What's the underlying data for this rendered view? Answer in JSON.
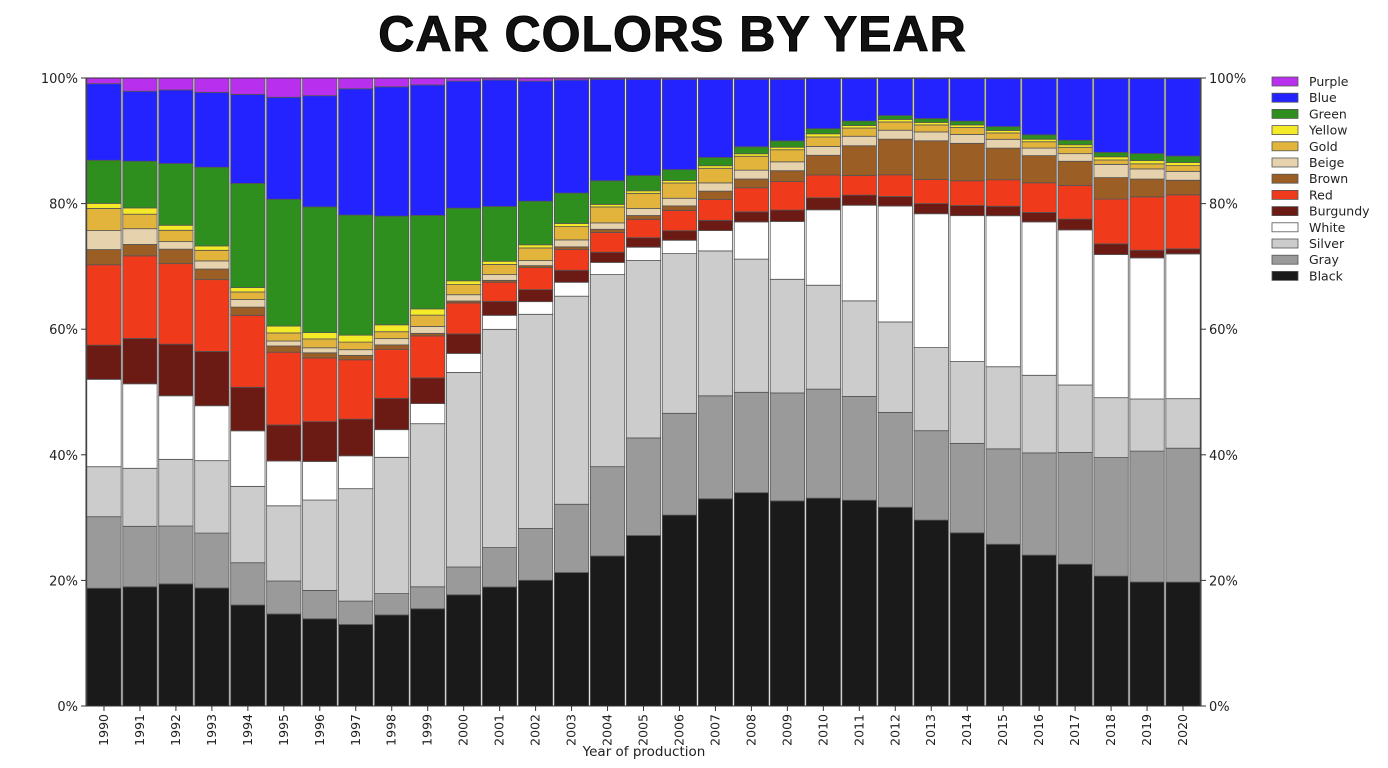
{
  "chart_data": {
    "type": "bar",
    "stacked": true,
    "normalized": true,
    "title": "CAR COLORS BY YEAR",
    "xlabel": "Year of production",
    "ylabel": "",
    "ylim": [
      0,
      100
    ],
    "y_ticks": [
      "0%",
      "20%",
      "40%",
      "60%",
      "80%",
      "100%"
    ],
    "y_tick_values": [
      0,
      20,
      40,
      60,
      80,
      100
    ],
    "grid": false,
    "legend_position": "right",
    "categories": [
      "1990",
      "1991",
      "1992",
      "1993",
      "1994",
      "1995",
      "1996",
      "1997",
      "1998",
      "1999",
      "2000",
      "2001",
      "2002",
      "2003",
      "2004",
      "2005",
      "2006",
      "2007",
      "2008",
      "2009",
      "2010",
      "2011",
      "2012",
      "2013",
      "2014",
      "2015",
      "2016",
      "2017",
      "2018",
      "2019",
      "2020"
    ],
    "series": [
      {
        "name": "Black",
        "color": "#1a1a1a",
        "values": [
          18.6,
          18.9,
          19.4,
          18.9,
          16.0,
          14.8,
          13.8,
          12.9,
          14.5,
          15.5,
          17.6,
          18.7,
          19.9,
          21.1,
          23.5,
          26.9,
          30.0,
          32.6,
          33.8,
          32.3,
          32.8,
          32.5,
          31.2,
          29.3,
          27.3,
          25.6,
          23.9,
          22.3,
          20.6,
          19.5,
          19.5
        ]
      },
      {
        "name": "Gray",
        "color": "#9a9a9a",
        "values": [
          11.3,
          9.6,
          9.2,
          8.8,
          6.7,
          5.3,
          4.5,
          3.7,
          3.4,
          3.5,
          4.4,
          6.2,
          8.2,
          10.8,
          14.0,
          15.4,
          16.0,
          16.2,
          15.9,
          17.0,
          17.2,
          16.4,
          14.9,
          14.1,
          14.1,
          15.1,
          16.2,
          17.6,
          18.8,
          20.6,
          21.1
        ]
      },
      {
        "name": "Silver",
        "color": "#cccccc",
        "values": [
          7.9,
          9.2,
          10.6,
          11.6,
          12.1,
          12.1,
          14.3,
          17.8,
          21.7,
          26.0,
          30.8,
          34.3,
          33.9,
          32.9,
          30.1,
          28.0,
          25.1,
          22.8,
          21.1,
          17.9,
          16.4,
          15.1,
          14.2,
          13.1,
          12.9,
          13.0,
          12.3,
          10.6,
          9.5,
          8.2,
          7.8
        ]
      },
      {
        "name": "White",
        "color": "#ffffff",
        "values": [
          13.8,
          13.4,
          10.1,
          8.8,
          8.8,
          7.2,
          6.1,
          5.2,
          4.4,
          3.2,
          3.0,
          2.2,
          2.0,
          2.2,
          1.9,
          2.1,
          2.1,
          3.2,
          5.9,
          9.1,
          11.9,
          15.1,
          18.2,
          21.1,
          23.0,
          23.9,
          24.3,
          24.4,
          22.7,
          22.2,
          22.8
        ]
      },
      {
        "name": "Burgundy",
        "color": "#6b1a14",
        "values": [
          5.4,
          7.2,
          8.2,
          8.7,
          6.9,
          5.8,
          6.3,
          5.8,
          5.0,
          4.1,
          3.1,
          2.2,
          1.9,
          1.9,
          1.6,
          1.5,
          1.5,
          1.6,
          1.6,
          1.8,
          1.9,
          1.6,
          1.5,
          1.6,
          1.6,
          1.5,
          1.5,
          1.7,
          1.7,
          1.2,
          0.8
        ]
      },
      {
        "name": "Red",
        "color": "#f03a1c",
        "values": [
          12.7,
          13.1,
          12.8,
          11.5,
          11.4,
          11.7,
          10.1,
          9.4,
          7.8,
          6.7,
          4.9,
          3.0,
          3.5,
          3.3,
          3.1,
          2.9,
          3.2,
          3.3,
          3.8,
          4.5,
          3.6,
          3.1,
          3.4,
          3.8,
          3.9,
          4.2,
          4.7,
          5.3,
          7.1,
          8.4,
          8.5
        ]
      },
      {
        "name": "Brown",
        "color": "#9b5e25",
        "values": [
          2.4,
          1.8,
          2.3,
          1.7,
          1.3,
          1.0,
          0.8,
          0.7,
          0.7,
          0.4,
          0.3,
          0.3,
          0.3,
          0.4,
          0.5,
          0.6,
          0.7,
          1.3,
          1.4,
          1.7,
          3.1,
          4.7,
          5.6,
          6.1,
          5.9,
          5.0,
          4.3,
          3.8,
          3.4,
          2.8,
          2.3
        ]
      },
      {
        "name": "Beige",
        "color": "#e6d2ad",
        "values": [
          3.0,
          2.5,
          1.2,
          1.3,
          1.2,
          0.8,
          0.8,
          0.9,
          1.0,
          1.1,
          1.0,
          0.9,
          0.8,
          1.1,
          1.0,
          1.1,
          1.2,
          1.3,
          1.4,
          1.4,
          1.4,
          1.5,
          1.4,
          1.4,
          1.4,
          1.4,
          1.2,
          1.2,
          2.1,
          1.6,
          1.4
        ]
      },
      {
        "name": "Gold",
        "color": "#e2b43c",
        "values": [
          3.5,
          2.3,
          1.8,
          1.7,
          1.2,
          1.3,
          1.4,
          1.2,
          1.1,
          1.8,
          1.6,
          1.6,
          2.0,
          2.1,
          2.5,
          2.4,
          2.4,
          2.3,
          2.2,
          1.9,
          1.5,
          1.3,
          1.3,
          1.1,
          1.1,
          1.0,
          1.0,
          1.0,
          0.7,
          0.8,
          0.9
        ]
      },
      {
        "name": "Yellow",
        "color": "#f5ea27",
        "values": [
          0.8,
          1.0,
          0.8,
          0.7,
          0.7,
          1.1,
          1.0,
          1.1,
          1.1,
          1.0,
          0.6,
          0.5,
          0.5,
          0.5,
          0.4,
          0.4,
          0.4,
          0.4,
          0.4,
          0.4,
          0.5,
          0.4,
          0.4,
          0.4,
          0.4,
          0.4,
          0.4,
          0.4,
          0.5,
          0.5,
          0.5
        ]
      },
      {
        "name": "Green",
        "color": "#2e8f1f",
        "values": [
          6.8,
          7.4,
          9.8,
          12.6,
          16.5,
          20.4,
          19.9,
          19.0,
          17.3,
          14.9,
          11.5,
          8.6,
          6.9,
          4.8,
          3.7,
          2.4,
          1.7,
          1.3,
          1.1,
          1.0,
          0.8,
          0.7,
          0.6,
          0.6,
          0.6,
          0.6,
          0.7,
          0.7,
          0.7,
          1.1,
          1.0
        ]
      },
      {
        "name": "Blue",
        "color": "#2323ff",
        "values": [
          12.1,
          11.1,
          11.7,
          12.0,
          14.1,
          16.4,
          17.6,
          20.0,
          20.6,
          20.8,
          20.1,
          19.9,
          19.0,
          17.9,
          15.9,
          15.2,
          14.2,
          12.3,
          10.7,
          9.7,
          7.9,
          6.7,
          5.8,
          6.3,
          6.7,
          7.6,
          8.9,
          9.7,
          11.7,
          11.8,
          12.2
        ]
      },
      {
        "name": "Purple",
        "color": "#b92fee",
        "values": [
          0.9,
          2.1,
          1.9,
          2.3,
          2.6,
          3.1,
          2.8,
          1.7,
          1.4,
          1.1,
          0.5,
          0.3,
          0.5,
          0.3,
          0.2,
          0.2,
          0.2,
          0.2,
          0.2,
          0.2,
          0.1,
          0.1,
          0.1,
          0.1,
          0.1,
          0.1,
          0.1,
          0.1,
          0.1,
          0.1,
          0.1
        ]
      }
    ],
    "legend_order": [
      "Purple",
      "Blue",
      "Green",
      "Yellow",
      "Gold",
      "Beige",
      "Brown",
      "Red",
      "Burgundy",
      "White",
      "Silver",
      "Gray",
      "Black"
    ]
  }
}
